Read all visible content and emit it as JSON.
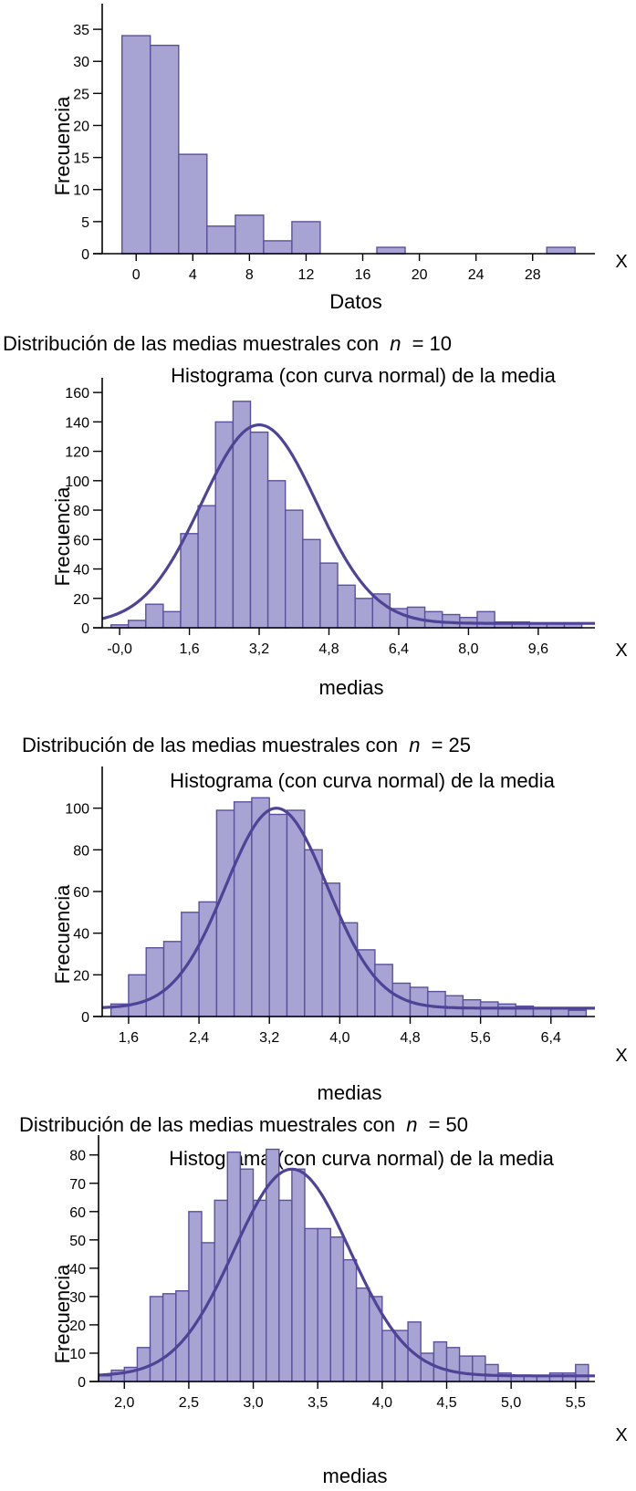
{
  "colors": {
    "bar_fill": "#a7a3d3",
    "bar_stroke": "#5a519d",
    "curve": "#4e4397"
  },
  "chart_data": [
    {
      "type": "bar",
      "title": "",
      "subtitle": "",
      "xlabel": "Datos",
      "ylabel": "Frecuencia",
      "axis_end_label": "X",
      "xticks": [
        0,
        4,
        8,
        12,
        16,
        20,
        24,
        28
      ],
      "xtick_labels": [
        "0",
        "4",
        "8",
        "12",
        "16",
        "20",
        "24",
        "28"
      ],
      "yticks": [
        0,
        5,
        10,
        15,
        20,
        25,
        30,
        35
      ],
      "ytick_labels": [
        "0",
        "5",
        "10",
        "15",
        "20",
        "25",
        "30",
        "35"
      ],
      "xlim": [
        -2.4,
        32.4
      ],
      "ylim": [
        0,
        39
      ],
      "bin_width": 2,
      "bin_starts": [
        -1,
        1,
        3,
        5,
        7,
        9,
        11,
        17,
        29
      ],
      "values": [
        34,
        32.5,
        15.5,
        4.3,
        6,
        2,
        5,
        1,
        1
      ]
    },
    {
      "type": "bar",
      "title": "Distribución de las medias muestrales con",
      "title_n_label": "n",
      "title_n_value": "= 10",
      "subtitle": "Histograma (con curva normal) de la media",
      "xlabel": "medias",
      "ylabel": "Frecuencia",
      "axis_end_label": "X",
      "xticks": [
        0,
        1.6,
        3.2,
        4.8,
        6.4,
        8.0,
        9.6
      ],
      "xtick_labels": [
        "-0,0",
        "1,6",
        "3,2",
        "4,8",
        "6,4",
        "8,0",
        "9,6"
      ],
      "yticks": [
        0,
        20,
        40,
        60,
        80,
        100,
        120,
        140,
        160
      ],
      "ytick_labels": [
        "0",
        "20",
        "40",
        "60",
        "80",
        "100",
        "120",
        "140",
        "160"
      ],
      "xlim": [
        -0.4,
        10.9
      ],
      "ylim": [
        0,
        170
      ],
      "bin_width": 0.4,
      "bin_starts": [
        -0.2,
        0.2,
        0.6,
        1.0,
        1.4,
        1.8,
        2.2,
        2.6,
        3.0,
        3.4,
        3.8,
        4.2,
        4.6,
        5.0,
        5.4,
        5.8,
        6.2,
        6.6,
        7.0,
        7.4,
        7.8,
        8.2,
        8.6,
        9.0,
        9.4,
        9.8,
        10.2
      ],
      "values": [
        2,
        5,
        16,
        11,
        64,
        83,
        140,
        154,
        133,
        100,
        80,
        60,
        44,
        29,
        20,
        23,
        13,
        14,
        11,
        9,
        7,
        11,
        4,
        4,
        3,
        3,
        3
      ],
      "normal_curve": {
        "mean": 3.2,
        "sd": 1.32,
        "peak": 138,
        "tail_baseline": 3
      }
    },
    {
      "type": "bar",
      "title": "Distribución de las medias muestrales con",
      "title_n_label": "n",
      "title_n_value": "= 25",
      "subtitle": "Histograma (con curva normal) de la media",
      "xlabel": "medias",
      "ylabel": "Frecuencia",
      "axis_end_label": "X",
      "xticks": [
        1.6,
        2.4,
        3.2,
        4.0,
        4.8,
        5.6,
        6.4
      ],
      "xtick_labels": [
        "1,6",
        "2,4",
        "3,2",
        "4,0",
        "4,8",
        "5,6",
        "6,4"
      ],
      "yticks": [
        0,
        20,
        40,
        60,
        80,
        100
      ],
      "ytick_labels": [
        "0",
        "20",
        "40",
        "60",
        "80",
        "100"
      ],
      "xlim": [
        1.3,
        6.9
      ],
      "ylim": [
        0,
        120
      ],
      "bin_width": 0.2,
      "bin_starts": [
        1.4,
        1.6,
        1.8,
        2.0,
        2.2,
        2.4,
        2.6,
        2.8,
        3.0,
        3.2,
        3.4,
        3.6,
        3.8,
        4.0,
        4.2,
        4.4,
        4.6,
        4.8,
        5.0,
        5.2,
        5.4,
        5.6,
        5.8,
        6.0,
        6.2,
        6.4,
        6.6
      ],
      "values": [
        6,
        20,
        33,
        36,
        50,
        55,
        99,
        103,
        105,
        97,
        99,
        80,
        64,
        45,
        32,
        25,
        16,
        14,
        12,
        10,
        8,
        7,
        6,
        5,
        4,
        4,
        3
      ],
      "normal_curve": {
        "mean": 3.28,
        "sd": 0.58,
        "peak": 100,
        "tail_baseline": 4
      }
    },
    {
      "type": "bar",
      "title": "Distribución de las medias muestrales con",
      "title_n_label": "n",
      "title_n_value": "= 50",
      "subtitle": "Histograma (con curva normal) de la media",
      "xlabel": "medias",
      "ylabel": "Frecuencia",
      "axis_end_label": "X",
      "xticks": [
        2.0,
        2.5,
        3.0,
        3.5,
        4.0,
        4.5,
        5.0,
        5.5
      ],
      "xtick_labels": [
        "2,0",
        "2,5",
        "3,0",
        "3,5",
        "4,0",
        "4,5",
        "5,0",
        "5,5"
      ],
      "yticks": [
        0,
        10,
        20,
        30,
        40,
        50,
        60,
        70,
        80
      ],
      "ytick_labels": [
        "0",
        "10",
        "20",
        "30",
        "40",
        "50",
        "60",
        "70",
        "80"
      ],
      "xlim": [
        1.8,
        5.65
      ],
      "ylim": [
        0,
        87
      ],
      "bin_width": 0.1,
      "bin_starts": [
        1.8,
        1.9,
        2.0,
        2.1,
        2.2,
        2.3,
        2.4,
        2.5,
        2.6,
        2.7,
        2.8,
        2.9,
        3.0,
        3.1,
        3.2,
        3.3,
        3.4,
        3.5,
        3.6,
        3.7,
        3.8,
        3.9,
        4.0,
        4.1,
        4.2,
        4.3,
        4.4,
        4.5,
        4.6,
        4.7,
        4.8,
        4.9,
        5.0,
        5.1,
        5.2,
        5.3,
        5.4,
        5.5
      ],
      "values": [
        2,
        4,
        5,
        12,
        30,
        31,
        32,
        60,
        49,
        64,
        81,
        75,
        64,
        82,
        64,
        75,
        54,
        54,
        51,
        43,
        33,
        30,
        18,
        18,
        21,
        10,
        14,
        12,
        9,
        9,
        6,
        3,
        2,
        2,
        2,
        3,
        3,
        6
      ],
      "normal_curve": {
        "mean": 3.3,
        "sd": 0.45,
        "peak": 75,
        "tail_baseline": 2
      }
    }
  ]
}
